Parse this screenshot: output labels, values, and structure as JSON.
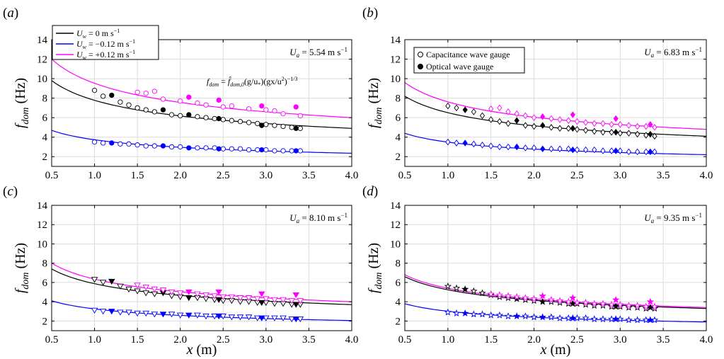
{
  "figure": {
    "xlabel": "x (m)",
    "ylabel": "f_dom (Hz)",
    "legend_wind": [
      {
        "label": "U_w = 0 m s⁻¹",
        "color": "#000000"
      },
      {
        "label": "U_w = −0.12 m s⁻¹",
        "color": "#0000ff"
      },
      {
        "label": "U_w = +0.12 m s⁻¹",
        "color": "#ff00ff"
      }
    ],
    "legend_gauge": [
      {
        "label": "Capacitance wave gauge",
        "marker": "open"
      },
      {
        "label": "Optical wave gauge",
        "marker": "filled"
      }
    ],
    "equation": "f_dom = f̂_dom,0 (g/u*)(gx/u*²)^(−1/3)",
    "colors": {
      "zero": "#000000",
      "neg": "#0000ff",
      "pos": "#ff00ff",
      "grid": "#dcdcdc"
    }
  },
  "chart_data": [
    {
      "type": "scatter",
      "panel": "(a)",
      "annotation": "U_a = 5.54 m s⁻¹",
      "marker": "circle",
      "xlim": [
        0.5,
        4.0
      ],
      "ylim": [
        1,
        14
      ],
      "xticks": [
        0.5,
        1.0,
        1.5,
        2.0,
        2.5,
        3.0,
        3.5,
        4.0
      ],
      "yticks": [
        2,
        4,
        6,
        8,
        10,
        12,
        14
      ],
      "grid": true,
      "legend": "top-left",
      "series": [
        {
          "key": "zero",
          "fit": {
            "x": [
              0.5,
              4.0
            ],
            "y": [
              9.8,
              4.9
            ]
          },
          "capacitance": {
            "x": [
              1.0,
              1.1,
              1.3,
              1.4,
              1.5,
              1.6,
              1.7,
              1.9,
              2.0,
              2.2,
              2.3,
              2.4,
              2.5,
              2.6,
              2.7,
              2.8,
              2.9,
              3.0,
              3.1,
              3.2,
              3.3,
              3.4
            ],
            "y": [
              8.8,
              8.2,
              7.6,
              7.3,
              7.0,
              6.8,
              6.6,
              6.3,
              6.2,
              6.1,
              6.0,
              5.9,
              5.8,
              5.7,
              5.6,
              5.5,
              5.4,
              5.3,
              5.2,
              5.1,
              5.0,
              4.9
            ]
          },
          "optical": {
            "x": [
              1.2,
              1.8,
              2.1,
              2.45,
              2.95,
              3.35
            ],
            "y": [
              8.3,
              6.8,
              6.3,
              5.9,
              5.2,
              4.9
            ]
          }
        },
        {
          "key": "neg",
          "fit": {
            "x": [
              0.5,
              4.0
            ],
            "y": [
              4.7,
              2.4
            ]
          },
          "capacitance": {
            "x": [
              1.0,
              1.1,
              1.3,
              1.4,
              1.5,
              1.6,
              1.7,
              1.9,
              2.0,
              2.2,
              2.3,
              2.4,
              2.5,
              2.6,
              2.7,
              2.8,
              2.9,
              3.0,
              3.1,
              3.2,
              3.3,
              3.4
            ],
            "y": [
              3.5,
              3.4,
              3.3,
              3.3,
              3.2,
              3.1,
              3.1,
              3.0,
              3.0,
              2.9,
              2.9,
              2.9,
              2.8,
              2.8,
              2.8,
              2.7,
              2.7,
              2.7,
              2.6,
              2.6,
              2.6,
              2.6
            ]
          },
          "optical": {
            "x": [
              1.2,
              1.8,
              2.1,
              2.45,
              2.95,
              3.35
            ],
            "y": [
              3.4,
              3.1,
              2.9,
              2.8,
              2.7,
              2.6
            ]
          }
        },
        {
          "key": "pos",
          "fit": {
            "x": [
              0.5,
              4.0
            ],
            "y": [
              12.0,
              6.0
            ]
          },
          "capacitance": {
            "x": [
              1.5,
              1.6,
              1.7,
              1.8,
              2.0,
              2.2,
              2.3,
              2.5,
              2.6,
              2.8,
              3.0,
              3.1,
              3.2,
              3.4
            ],
            "y": [
              8.6,
              8.5,
              8.7,
              7.9,
              7.7,
              7.5,
              7.3,
              7.1,
              7.2,
              6.9,
              6.8,
              6.7,
              6.4,
              6.2
            ]
          },
          "optical": {
            "x": [
              2.1,
              2.45,
              2.95,
              3.35
            ],
            "y": [
              8.1,
              7.8,
              7.2,
              7.1
            ]
          }
        }
      ]
    },
    {
      "type": "scatter",
      "panel": "(b)",
      "annotation": "U_a = 6.83 m s⁻¹",
      "marker": "diamond",
      "xlim": [
        0.5,
        4.0
      ],
      "ylim": [
        1,
        14
      ],
      "xticks": [
        0.5,
        1.0,
        1.5,
        2.0,
        2.5,
        3.0,
        3.5,
        4.0
      ],
      "yticks": [
        2,
        4,
        6,
        8,
        10,
        12,
        14
      ],
      "grid": true,
      "legend": "top-left",
      "series": [
        {
          "key": "zero",
          "fit": {
            "x": [
              0.5,
              4.0
            ],
            "y": [
              8.2,
              4.1
            ]
          },
          "capacitance": {
            "x": [
              1.0,
              1.1,
              1.3,
              1.4,
              1.5,
              1.6,
              1.7,
              1.9,
              2.0,
              2.2,
              2.3,
              2.4,
              2.5,
              2.6,
              2.7,
              2.8,
              2.9,
              3.0,
              3.1,
              3.2,
              3.3,
              3.4
            ],
            "y": [
              7.2,
              7.0,
              6.6,
              6.2,
              5.8,
              5.6,
              5.4,
              5.2,
              5.1,
              5.0,
              4.9,
              4.9,
              4.8,
              4.7,
              4.6,
              4.5,
              4.5,
              4.4,
              4.4,
              4.3,
              4.2,
              4.1
            ]
          },
          "optical": {
            "x": [
              1.2,
              1.8,
              2.1,
              2.45,
              2.95,
              3.35
            ],
            "y": [
              6.8,
              5.7,
              5.2,
              4.9,
              4.5,
              4.3
            ]
          }
        },
        {
          "key": "neg",
          "fit": {
            "x": [
              0.5,
              4.0
            ],
            "y": [
              4.4,
              2.3
            ]
          },
          "capacitance": {
            "x": [
              1.0,
              1.1,
              1.3,
              1.4,
              1.5,
              1.6,
              1.7,
              1.9,
              2.0,
              2.2,
              2.3,
              2.4,
              2.5,
              2.6,
              2.7,
              2.8,
              2.9,
              3.0,
              3.1,
              3.2,
              3.3,
              3.4
            ],
            "y": [
              3.5,
              3.4,
              3.3,
              3.2,
              3.1,
              3.0,
              3.0,
              2.9,
              2.9,
              2.8,
              2.8,
              2.8,
              2.7,
              2.7,
              2.7,
              2.6,
              2.6,
              2.6,
              2.5,
              2.5,
              2.5,
              2.5
            ]
          },
          "optical": {
            "x": [
              1.2,
              1.8,
              2.1,
              2.45,
              2.95,
              3.35
            ],
            "y": [
              3.4,
              3.0,
              2.8,
              2.7,
              2.6,
              2.5
            ]
          }
        },
        {
          "key": "pos",
          "fit": {
            "x": [
              0.5,
              4.0
            ],
            "y": [
              9.6,
              4.8
            ]
          },
          "capacitance": {
            "x": [
              1.5,
              1.6,
              1.7,
              1.8,
              1.9,
              2.0,
              2.2,
              2.3,
              2.4,
              2.5,
              2.6,
              2.7,
              2.8,
              2.9,
              3.0,
              3.1,
              3.2,
              3.3,
              3.4
            ],
            "y": [
              6.9,
              7.0,
              6.6,
              6.4,
              6.2,
              6.0,
              5.9,
              5.8,
              5.7,
              5.6,
              5.5,
              5.4,
              5.4,
              5.3,
              5.3,
              5.2,
              5.1,
              5.1,
              5.0
            ]
          },
          "optical": {
            "x": [
              2.1,
              2.45,
              2.95,
              3.35
            ],
            "y": [
              6.1,
              6.3,
              5.9,
              5.3
            ]
          }
        }
      ]
    },
    {
      "type": "scatter",
      "panel": "(c)",
      "annotation": "U_a = 8.10 m s⁻¹",
      "marker": "triangle-down",
      "xlim": [
        0.5,
        4.0
      ],
      "ylim": [
        1,
        14
      ],
      "xticks": [
        0.5,
        1.0,
        1.5,
        2.0,
        2.5,
        3.0,
        3.5,
        4.0
      ],
      "yticks": [
        2,
        4,
        6,
        8,
        10,
        12,
        14
      ],
      "grid": true,
      "series": [
        {
          "key": "zero",
          "fit": {
            "x": [
              0.5,
              4.0
            ],
            "y": [
              7.4,
              3.7
            ]
          },
          "capacitance": {
            "x": [
              1.0,
              1.1,
              1.3,
              1.4,
              1.5,
              1.6,
              1.7,
              1.9,
              2.0,
              2.2,
              2.3,
              2.4,
              2.5,
              2.6,
              2.7,
              2.8,
              2.9,
              3.0,
              3.1,
              3.2,
              3.3,
              3.4
            ],
            "y": [
              6.3,
              6.0,
              5.6,
              5.3,
              5.1,
              4.9,
              4.8,
              4.6,
              4.5,
              4.4,
              4.3,
              4.2,
              4.1,
              4.1,
              4.0,
              4.0,
              3.9,
              3.9,
              3.8,
              3.8,
              3.7,
              3.7
            ]
          },
          "optical": {
            "x": [
              1.2,
              1.8,
              2.1,
              2.45,
              2.95,
              3.35
            ],
            "y": [
              6.1,
              4.9,
              4.4,
              4.2,
              3.9,
              3.7
            ]
          }
        },
        {
          "key": "neg",
          "fit": {
            "x": [
              0.5,
              4.0
            ],
            "y": [
              4.1,
              2.1
            ]
          },
          "capacitance": {
            "x": [
              1.0,
              1.1,
              1.3,
              1.4,
              1.5,
              1.6,
              1.7,
              1.9,
              2.0,
              2.2,
              2.3,
              2.4,
              2.5,
              2.6,
              2.7,
              2.8,
              2.9,
              3.0,
              3.1,
              3.2,
              3.3,
              3.4
            ],
            "y": [
              3.1,
              3.0,
              2.9,
              2.9,
              2.8,
              2.8,
              2.7,
              2.7,
              2.6,
              2.6,
              2.5,
              2.5,
              2.5,
              2.4,
              2.4,
              2.4,
              2.3,
              2.3,
              2.3,
              2.3,
              2.2,
              2.2
            ]
          },
          "optical": {
            "x": [
              1.2,
              1.8,
              2.1,
              2.45,
              2.95,
              3.35
            ],
            "y": [
              3.0,
              2.7,
              2.6,
              2.5,
              2.3,
              2.2
            ]
          }
        },
        {
          "key": "pos",
          "fit": {
            "x": [
              0.5,
              4.0
            ],
            "y": [
              8.0,
              4.0
            ]
          },
          "capacitance": {
            "x": [
              1.5,
              1.6,
              1.7,
              1.8,
              1.9,
              2.0,
              2.2,
              2.3,
              2.4,
              2.5,
              2.6,
              2.7,
              2.8,
              2.9,
              3.0,
              3.1,
              3.2,
              3.3,
              3.4
            ],
            "y": [
              5.7,
              5.5,
              5.3,
              5.2,
              5.0,
              4.9,
              4.8,
              4.7,
              4.6,
              4.5,
              4.5,
              4.4,
              4.4,
              4.3,
              4.3,
              4.2,
              4.2,
              4.1,
              4.1
            ]
          },
          "optical": {
            "x": [
              2.1,
              2.45,
              2.95,
              3.35
            ],
            "y": [
              5.0,
              5.0,
              4.8,
              4.7
            ]
          }
        }
      ]
    },
    {
      "type": "scatter",
      "panel": "(d)",
      "annotation": "U_a = 9.35 m s⁻¹",
      "marker": "star",
      "xlim": [
        0.5,
        4.0
      ],
      "ylim": [
        1,
        14
      ],
      "xticks": [
        0.5,
        1.0,
        1.5,
        2.0,
        2.5,
        3.0,
        3.5,
        4.0
      ],
      "yticks": [
        2,
        4,
        6,
        8,
        10,
        12,
        14
      ],
      "grid": true,
      "series": [
        {
          "key": "zero",
          "fit": {
            "x": [
              0.5,
              4.0
            ],
            "y": [
              6.6,
              3.3
            ]
          },
          "capacitance": {
            "x": [
              1.0,
              1.1,
              1.3,
              1.4,
              1.5,
              1.6,
              1.7,
              1.9,
              2.0,
              2.2,
              2.3,
              2.4,
              2.5,
              2.6,
              2.7,
              2.8,
              2.9,
              3.0,
              3.1,
              3.2,
              3.3,
              3.4
            ],
            "y": [
              5.6,
              5.4,
              5.1,
              4.9,
              4.7,
              4.5,
              4.4,
              4.2,
              4.1,
              4.0,
              3.9,
              3.8,
              3.8,
              3.7,
              3.6,
              3.6,
              3.5,
              3.5,
              3.4,
              3.4,
              3.3,
              3.3
            ]
          },
          "optical": {
            "x": [
              1.2,
              1.8,
              2.1,
              2.45,
              2.95,
              3.35
            ],
            "y": [
              5.3,
              4.3,
              4.0,
              3.8,
              3.5,
              3.4
            ]
          }
        },
        {
          "key": "neg",
          "fit": {
            "x": [
              0.5,
              4.0
            ],
            "y": [
              3.8,
              1.9
            ]
          },
          "capacitance": {
            "x": [
              1.0,
              1.1,
              1.3,
              1.4,
              1.5,
              1.6,
              1.7,
              1.9,
              2.0,
              2.2,
              2.3,
              2.4,
              2.5,
              2.6,
              2.7,
              2.8,
              2.9,
              3.0,
              3.1,
              3.2,
              3.3,
              3.4
            ],
            "y": [
              2.9,
              2.8,
              2.7,
              2.7,
              2.6,
              2.6,
              2.5,
              2.5,
              2.4,
              2.4,
              2.3,
              2.3,
              2.3,
              2.3,
              2.2,
              2.2,
              2.2,
              2.2,
              2.1,
              2.1,
              2.1,
              2.1
            ]
          },
          "optical": {
            "x": [
              1.2,
              1.8,
              2.1,
              2.45,
              2.95,
              3.35
            ],
            "y": [
              2.8,
              2.5,
              2.4,
              2.3,
              2.2,
              2.1
            ]
          }
        },
        {
          "key": "pos",
          "fit": {
            "x": [
              0.5,
              4.0
            ],
            "y": [
              6.8,
              3.4
            ]
          },
          "capacitance": {
            "x": [
              1.5,
              1.6,
              1.7,
              1.8,
              1.9,
              2.0,
              2.2,
              2.3,
              2.4,
              2.5,
              2.6,
              2.7,
              2.8,
              2.9,
              3.0,
              3.1,
              3.2,
              3.3,
              3.4
            ],
            "y": [
              4.8,
              4.7,
              4.6,
              4.5,
              4.4,
              4.3,
              4.2,
              4.1,
              4.0,
              3.9,
              3.9,
              3.8,
              3.8,
              3.7,
              3.7,
              3.6,
              3.6,
              3.5,
              3.5
            ]
          },
          "optical": {
            "x": [
              2.1,
              2.45,
              2.95,
              3.35
            ],
            "y": [
              4.6,
              4.4,
              4.2,
              4.0
            ]
          }
        }
      ]
    }
  ]
}
